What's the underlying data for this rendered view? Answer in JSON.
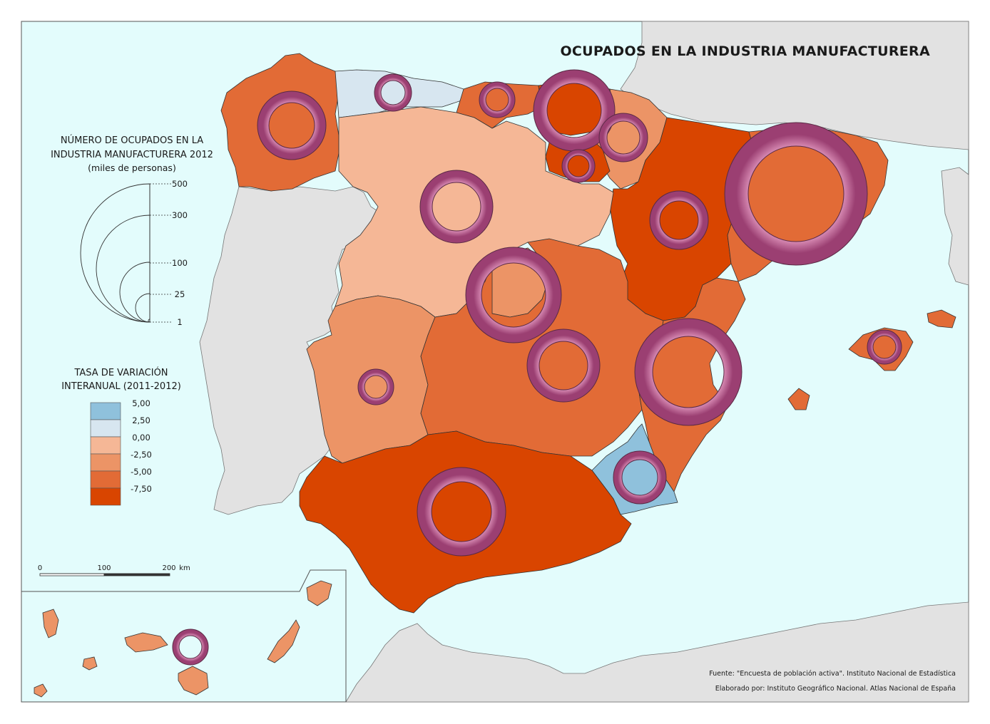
{
  "map": {
    "title": "OCUPADOS EN LA INDUSTRIA MANUFACTURERA"
  },
  "legend_size": {
    "title_line1": "NÚMERO DE OCUPADOS EN LA",
    "title_line2": "INDUSTRIA MANUFACTURERA 2012",
    "subtitle": "(miles de personas)",
    "values": [
      "500",
      "300",
      "100",
      "25",
      "1"
    ]
  },
  "legend_color": {
    "title_line1": "TASA DE VARIACIÓN",
    "title_line2": "INTERANUAL (2011-2012)",
    "classes": [
      {
        "label": "5,00",
        "color": "#8fc1dc"
      },
      {
        "label": "2,50",
        "color": "#d7e6f0"
      },
      {
        "label": "0,00",
        "color": "#f5b796"
      },
      {
        "label": "-2,50",
        "color": "#ec9466"
      },
      {
        "label": "-5,00",
        "color": "#e26b36"
      },
      {
        "label": "-7,50",
        "color": "#d94500"
      }
    ]
  },
  "scale_bar": {
    "labels": [
      "0",
      "100",
      "200"
    ],
    "unit": "km"
  },
  "credits": {
    "source": "Fuente: \"Encuesta de población activa\". Instituto Nacional de Estadística",
    "author": "Elaborado por: Instituto Geográfico Nacional. Atlas Nacional de España"
  },
  "colors": {
    "sea": "#e3fcfc",
    "foreign_land": "#e2e2e2",
    "ring": "#a84c80",
    "ring_light": "#d98ab5"
  }
}
